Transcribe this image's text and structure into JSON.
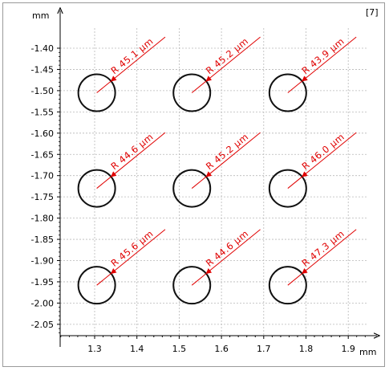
{
  "badge": "[7]",
  "chart_data": {
    "type": "scatter",
    "xlabel": "mm",
    "ylabel": "mm",
    "xlim": [
      1.22,
      1.92
    ],
    "ylim": [
      -2.09,
      -1.35
    ],
    "x_ticks": [
      "1.3",
      "1.4",
      "1.5",
      "1.6",
      "1.7",
      "1.8",
      "1.9"
    ],
    "y_ticks": [
      "-1.40",
      "-1.45",
      "-1.50",
      "-1.55",
      "-1.60",
      "-1.65",
      "-1.70",
      "-1.75",
      "-1.80",
      "-1.85",
      "-1.90",
      "-1.95",
      "-2.00",
      "-2.05"
    ],
    "grid": true,
    "circles": [
      {
        "cx": 1.305,
        "cy": -1.505,
        "label": "R 45.1 µm"
      },
      {
        "cx": 1.53,
        "cy": -1.505,
        "label": "R 45.2 µm"
      },
      {
        "cx": 1.757,
        "cy": -1.505,
        "label": "R 43.9 µm"
      },
      {
        "cx": 1.305,
        "cy": -1.73,
        "label": "R 44.6 µm"
      },
      {
        "cx": 1.53,
        "cy": -1.73,
        "label": "R 45.2 µm"
      },
      {
        "cx": 1.757,
        "cy": -1.73,
        "label": "R 46.0 µm"
      },
      {
        "cx": 1.305,
        "cy": -1.958,
        "label": "R 45.6 µm"
      },
      {
        "cx": 1.53,
        "cy": -1.958,
        "label": "R 44.6 µm"
      },
      {
        "cx": 1.757,
        "cy": -1.958,
        "label": "R 47.3 µm"
      }
    ]
  },
  "colors": {
    "circle": "#111111",
    "annotation": "#e00000",
    "grid": "#b8b8b8",
    "axis": "#000000"
  }
}
